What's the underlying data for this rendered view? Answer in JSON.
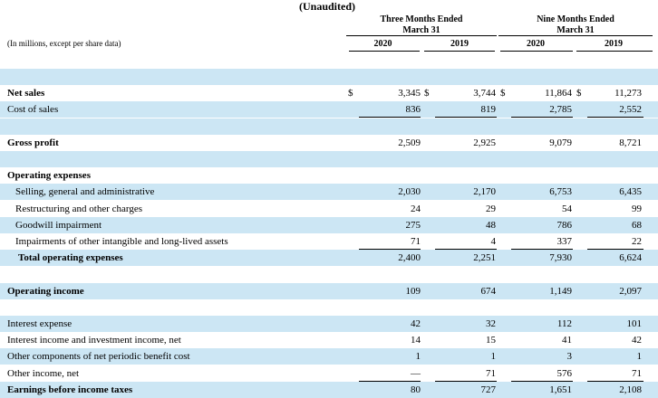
{
  "header": {
    "unaudited": "(Unaudited)",
    "group1_line1": "Three Months Ended",
    "group1_line2": "March 31",
    "group2_line1": "Nine Months Ended",
    "group2_line2": "March 31",
    "caption": "(In millions, except per share data)",
    "years": [
      "2020",
      "2019",
      "2020",
      "2019"
    ]
  },
  "colors": {
    "shade": "#cce6f4"
  },
  "rows": [
    {
      "label": "",
      "shaded": true
    },
    {
      "label": "Net sales",
      "bold": true,
      "dollar": true,
      "values": [
        "3,345",
        "3,744",
        "11,864",
        "11,273"
      ]
    },
    {
      "label": "Cost of sales",
      "shaded": true,
      "values": [
        "836",
        "819",
        "2,785",
        "2,552"
      ],
      "underline": true
    },
    {
      "label": "",
      "shaded": true
    },
    {
      "label": "Gross profit",
      "bold": true,
      "values": [
        "2,509",
        "2,925",
        "9,079",
        "8,721"
      ]
    },
    {
      "label": "",
      "shaded": true
    },
    {
      "label": "Operating expenses",
      "bold": true
    },
    {
      "label": "Selling, general and administrative",
      "indent": true,
      "shaded": true,
      "values": [
        "2,030",
        "2,170",
        "6,753",
        "6,435"
      ]
    },
    {
      "label": "Restructuring and other charges",
      "indent": true,
      "values": [
        "24",
        "29",
        "54",
        "99"
      ]
    },
    {
      "label": "Goodwill impairment",
      "indent": true,
      "shaded": true,
      "values": [
        "275",
        "48",
        "786",
        "68"
      ]
    },
    {
      "label": "Impairments of other intangible and long-lived assets",
      "indent": true,
      "values": [
        "71",
        "4",
        "337",
        "22"
      ],
      "underline": true
    },
    {
      "label": "Total operating expenses",
      "bold": true,
      "indent2": true,
      "shaded": true,
      "values": [
        "2,400",
        "2,251",
        "7,930",
        "6,624"
      ]
    },
    {
      "label": ""
    },
    {
      "label": "Operating income",
      "bold": true,
      "shaded": true,
      "values": [
        "109",
        "674",
        "1,149",
        "2,097"
      ]
    },
    {
      "label": ""
    },
    {
      "label": "Interest expense",
      "shaded": true,
      "values": [
        "42",
        "32",
        "112",
        "101"
      ]
    },
    {
      "label": "Interest income and investment income, net",
      "values": [
        "14",
        "15",
        "41",
        "42"
      ]
    },
    {
      "label": "Other components of net periodic benefit cost",
      "shaded": true,
      "values": [
        "1",
        "1",
        "3",
        "1"
      ]
    },
    {
      "label": "Other income, net",
      "values": [
        "—",
        "71",
        "576",
        "71"
      ],
      "underline": true
    },
    {
      "label": "Earnings before income taxes",
      "bold": true,
      "shaded": true,
      "values": [
        "80",
        "727",
        "1,651",
        "2,108"
      ]
    }
  ],
  "currency_symbol": "$"
}
